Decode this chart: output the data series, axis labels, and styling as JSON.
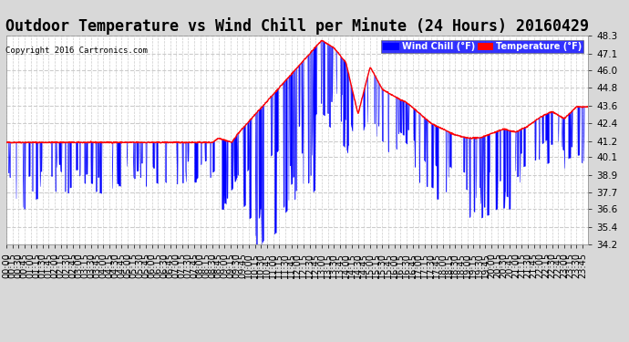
{
  "title": "Outdoor Temperature vs Wind Chill per Minute (24 Hours) 20160429",
  "copyright": "Copyright 2016 Cartronics.com",
  "legend_wind": "Wind Chill (°F)",
  "legend_temp": "Temperature (°F)",
  "ylim_min": 34.2,
  "ylim_max": 48.3,
  "yticks": [
    34.2,
    35.4,
    36.6,
    37.7,
    38.9,
    40.1,
    41.2,
    42.4,
    43.6,
    44.8,
    46.0,
    47.1,
    48.3
  ],
  "bg_color": "#d8d8d8",
  "plot_bg_color": "#ffffff",
  "temp_color": "#ff0000",
  "wind_color": "#0000ff",
  "grid_color": "#cccccc",
  "title_fontsize": 12,
  "tick_fontsize": 7.5,
  "n_minutes": 1440,
  "xtick_interval": 15,
  "seed": 42
}
